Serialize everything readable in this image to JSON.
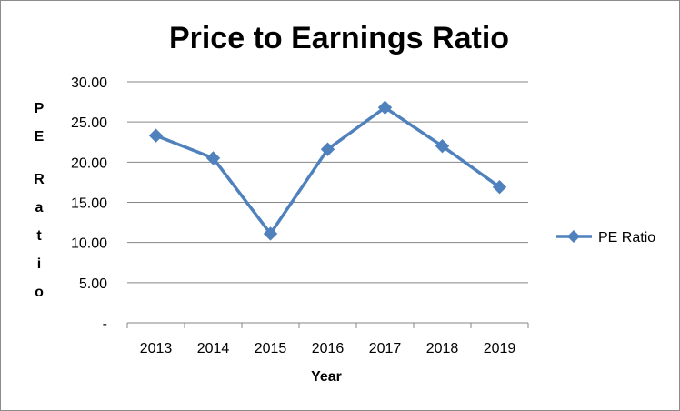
{
  "chart_data": {
    "type": "line",
    "title": "Price to Earnings Ratio",
    "xlabel": "Year",
    "ylabel": "PE Ratio",
    "categories": [
      "2013",
      "2014",
      "2015",
      "2016",
      "2017",
      "2018",
      "2019"
    ],
    "series": [
      {
        "name": "PE Ratio",
        "values": [
          23.3,
          20.5,
          11.1,
          21.6,
          26.8,
          22.0,
          16.9
        ],
        "color": "#4f81bd"
      }
    ],
    "ylim": [
      0,
      30
    ],
    "y_ticks": [
      "-",
      "5.00",
      "10.00",
      "15.00",
      "20.00",
      "25.00",
      "30.00"
    ],
    "grid": true,
    "legend_position": "right"
  }
}
